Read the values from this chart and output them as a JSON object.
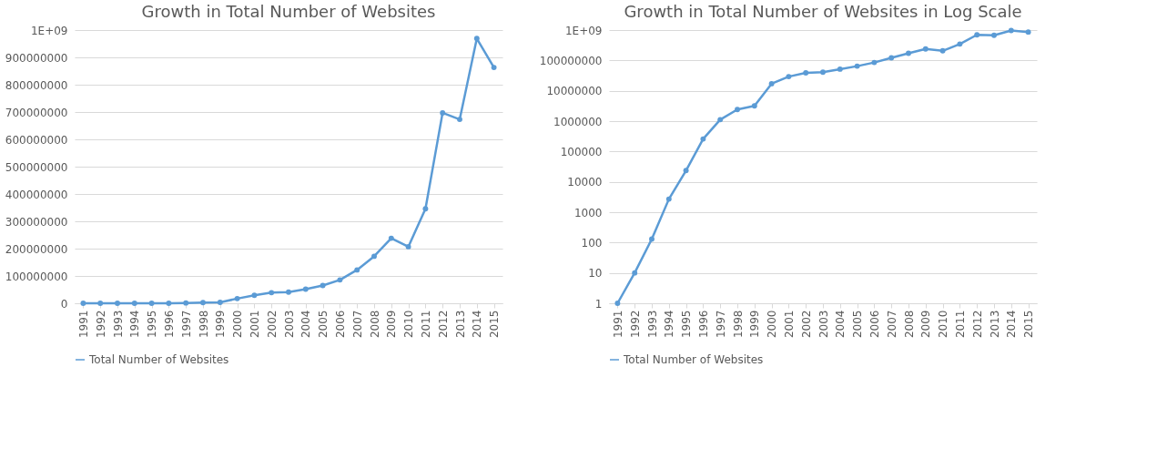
{
  "chart_data": [
    {
      "type": "line",
      "title": "Growth in Total Number of Websites",
      "categories": [
        "1991",
        "1992",
        "1993",
        "1994",
        "1995",
        "1996",
        "1997",
        "1998",
        "1999",
        "2000",
        "2001",
        "2002",
        "2003",
        "2004",
        "2005",
        "2006",
        "2007",
        "2008",
        "2009",
        "2010",
        "2011",
        "2012",
        "2013",
        "2014",
        "2015"
      ],
      "series": [
        {
          "name": "Total Number of Websites",
          "color": "#5b9bd5",
          "values": [
            1,
            10,
            130,
            2700,
            23500,
            258000,
            1120000,
            2410000,
            3180000,
            17100000,
            29300000,
            38800000,
            40900000,
            51600000,
            64800000,
            85500000,
            122000000,
            172000000,
            238000000,
            207000000,
            346000000,
            697000000,
            673000000,
            969000000,
            863000000
          ]
        }
      ],
      "ylim": [
        0,
        1000000000
      ],
      "yticks": [
        0,
        100000000,
        200000000,
        300000000,
        400000000,
        500000000,
        600000000,
        700000000,
        800000000,
        900000000,
        {
          "value": 1000000000,
          "label": "1E+09"
        }
      ],
      "grid": "y",
      "legend": "bottom",
      "marker": "circle"
    },
    {
      "type": "line",
      "title": "Growth in Total Number of Websites in Log Scale",
      "categories": [
        "1991",
        "1992",
        "1993",
        "1994",
        "1995",
        "1996",
        "1997",
        "1998",
        "1999",
        "2000",
        "2001",
        "2002",
        "2003",
        "2004",
        "2005",
        "2006",
        "2007",
        "2008",
        "2009",
        "2010",
        "2011",
        "2012",
        "2013",
        "2014",
        "2015"
      ],
      "series": [
        {
          "name": "Total Number of Websites",
          "color": "#5b9bd5",
          "values": [
            1,
            10,
            130,
            2700,
            23500,
            258000,
            1120000,
            2410000,
            3180000,
            17100000,
            29300000,
            38800000,
            40900000,
            51600000,
            64800000,
            85500000,
            122000000,
            172000000,
            238000000,
            207000000,
            346000000,
            697000000,
            673000000,
            969000000,
            863000000
          ]
        }
      ],
      "ylim": [
        1,
        1000000000
      ],
      "yticks": [
        1,
        10,
        100,
        1000,
        10000,
        100000,
        1000000,
        10000000,
        100000000,
        {
          "value": 1000000000,
          "label": "1E+09"
        }
      ],
      "log": true,
      "grid": "y",
      "legend": "bottom",
      "marker": "circle"
    }
  ]
}
